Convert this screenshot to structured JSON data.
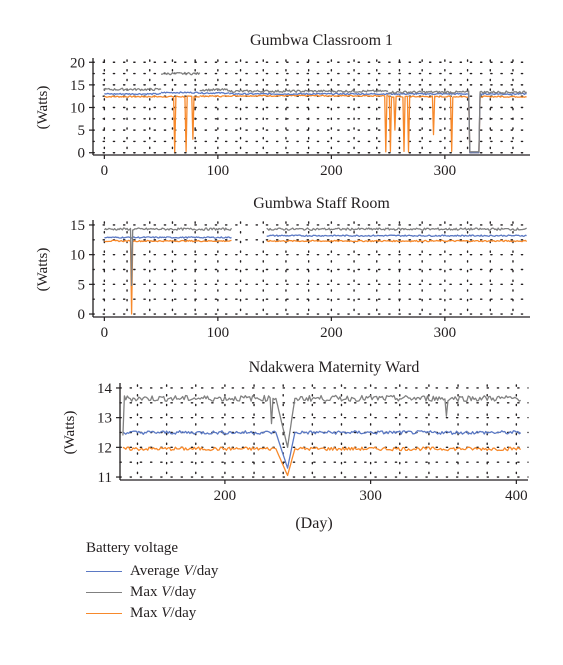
{
  "colors": {
    "average": "#5b79c4",
    "max_gray": "#808080",
    "max_orange": "#f7892b",
    "axis": "#231f20",
    "grid": "#231f20"
  },
  "legend": {
    "title": "Battery voltage",
    "items": [
      {
        "prefix": "Average ",
        "var": "V",
        "suffix": "/day",
        "series_key": "average"
      },
      {
        "prefix": "Max ",
        "var": "V",
        "suffix": "/day",
        "series_key": "max_gray"
      },
      {
        "prefix": "Max ",
        "var": "V",
        "suffix": "/day",
        "series_key": "max_orange"
      }
    ]
  },
  "chart_data": [
    {
      "type": "line",
      "title": "Gumbwa Classroom 1",
      "ylabel": "(Watts)",
      "xlabel": "",
      "xlim": [
        -10,
        375
      ],
      "ylim": [
        -0.5,
        20.5
      ],
      "xticks": [
        0,
        100,
        200,
        300
      ],
      "yticks": [
        0,
        5,
        10,
        15,
        20
      ],
      "grid": "dotted",
      "segments": [
        {
          "x": [
            0,
            50
          ],
          "max_gray": 14.0,
          "average": 13.0,
          "max_orange": 12.4
        },
        {
          "x": [
            50,
            84
          ],
          "max_gray": 17.5,
          "average": 13.3,
          "max_orange": 12.4
        },
        {
          "x": [
            84,
            110
          ],
          "max_gray": 13.9,
          "average": 13.2,
          "max_orange": 12.5
        },
        {
          "x": [
            110,
            250
          ],
          "max_gray": 13.6,
          "average": 13.0,
          "max_orange": 12.6
        },
        {
          "x": [
            250,
            372
          ],
          "max_gray": 13.4,
          "average": 13.0,
          "max_orange": 12.4
        }
      ],
      "events": [
        {
          "x": 62,
          "series": "max_orange",
          "y": 0.2
        },
        {
          "x": 72,
          "series": "max_orange",
          "y": 0.3
        },
        {
          "x": 78,
          "series": "max_orange",
          "y": 3.0
        },
        {
          "x": 248,
          "series": "max_orange",
          "y": 0.2
        },
        {
          "x": 252,
          "series": "max_orange",
          "y": 0.3
        },
        {
          "x": 256,
          "series": "max_orange",
          "y": 5.0
        },
        {
          "x": 264,
          "series": "max_orange",
          "y": 0.3
        },
        {
          "x": 268,
          "series": "max_orange",
          "y": 0.2
        },
        {
          "x": 290,
          "series": "max_orange",
          "y": 4.0
        },
        {
          "x": 306,
          "series": "max_orange",
          "y": 0.3
        }
      ],
      "gaps": [
        {
          "from": 322,
          "to": 330,
          "y": 0.0
        }
      ]
    },
    {
      "type": "line",
      "title": "Gumbwa Staff Room",
      "ylabel": "(Watts)",
      "xlabel": "",
      "xlim": [
        -10,
        375
      ],
      "ylim": [
        -0.5,
        15.5
      ],
      "xticks": [
        0,
        100,
        200,
        300
      ],
      "yticks": [
        0,
        5,
        10,
        15
      ],
      "grid": "dotted",
      "segments": [
        {
          "x": [
            0,
            112
          ],
          "max_gray": 14.3,
          "average": 12.9,
          "max_orange": 12.3
        },
        {
          "x": [
            143,
            372
          ],
          "max_gray": 14.3,
          "average": 13.2,
          "max_orange": 12.3
        }
      ],
      "events": [
        {
          "x": 24,
          "series": "max_orange",
          "y": 0.0
        },
        {
          "x": 24,
          "series": "max_gray",
          "y": 4.8
        }
      ],
      "gaps": []
    },
    {
      "type": "line",
      "title": "Ndakwera Maternity Ward",
      "ylabel": "(Watts)",
      "xlabel": "(Day)",
      "xlim": [
        128,
        408
      ],
      "ylim": [
        10.9,
        14.1
      ],
      "xticks": [
        200,
        300,
        400
      ],
      "yticks": [
        11,
        12,
        13,
        14
      ],
      "grid": "dotted",
      "segments": [
        {
          "x": [
            130,
            403
          ],
          "max_gray": 13.65,
          "average": 12.5,
          "max_orange": 11.95
        }
      ],
      "events": [
        {
          "x": 232,
          "series": "max_gray",
          "y": 12.8
        },
        {
          "x": 352,
          "series": "max_gray",
          "y": 13.05
        },
        {
          "x": 130,
          "series": "max_gray",
          "y": 12.4
        }
      ],
      "dip": {
        "start": 235,
        "bottom": 243,
        "end": 248,
        "max_gray": 12.0,
        "average": 11.3,
        "max_orange": 11.05
      },
      "gaps": []
    }
  ]
}
